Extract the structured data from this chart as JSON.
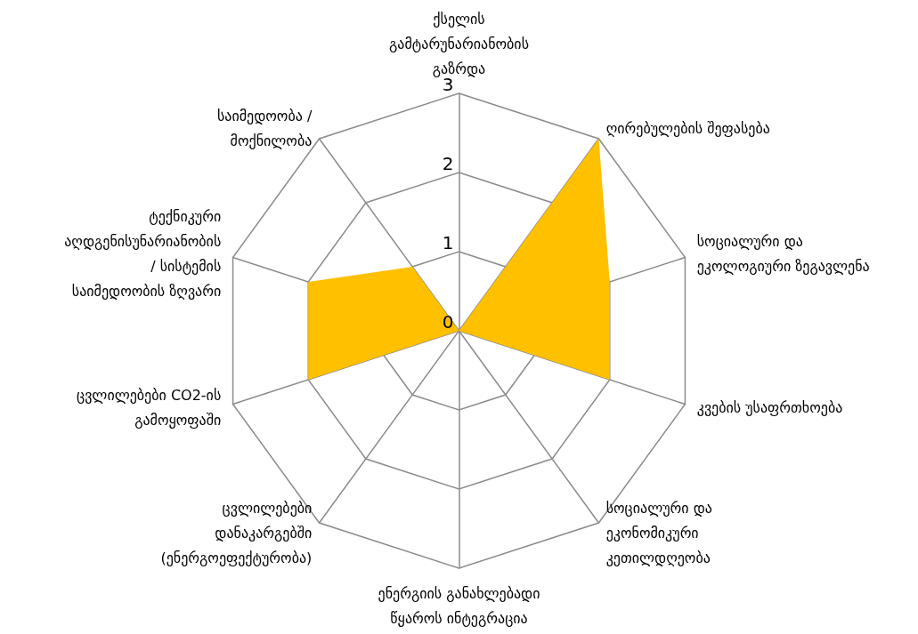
{
  "chart_data": {
    "type": "radar",
    "categories": [
      "ქსელის გამტარუნარიანობის გაზრდა",
      "ღირებულების შეფასება",
      "სოციალური და ეკოლოგიური ზეგავლენა",
      "კვების უსაფრთხოება",
      "სოციალური და ეკონომიკური კეთილდღეობა",
      "ენერგიის განახლებადი წყაროს ინტეგრაცია",
      "ცვლილებები დანაკარგებში (ენერგოეფექტურობა)",
      "ცვლილებები CO2-ის გამოყოფაში",
      "ტექნიკური აღდგენისუნარიანობის / სისტემის საიმედოობის ზღვარი",
      "საიმედოობა / მოქნილობა"
    ],
    "series": [
      {
        "color": "#ffc000",
        "values": [
          0,
          3,
          2,
          2,
          0,
          1,
          0,
          2,
          2,
          1
        ]
      }
    ],
    "ylim": [
      0,
      3
    ],
    "yticks": [
      0,
      1,
      2,
      3
    ],
    "grid": true,
    "marker": "none"
  }
}
